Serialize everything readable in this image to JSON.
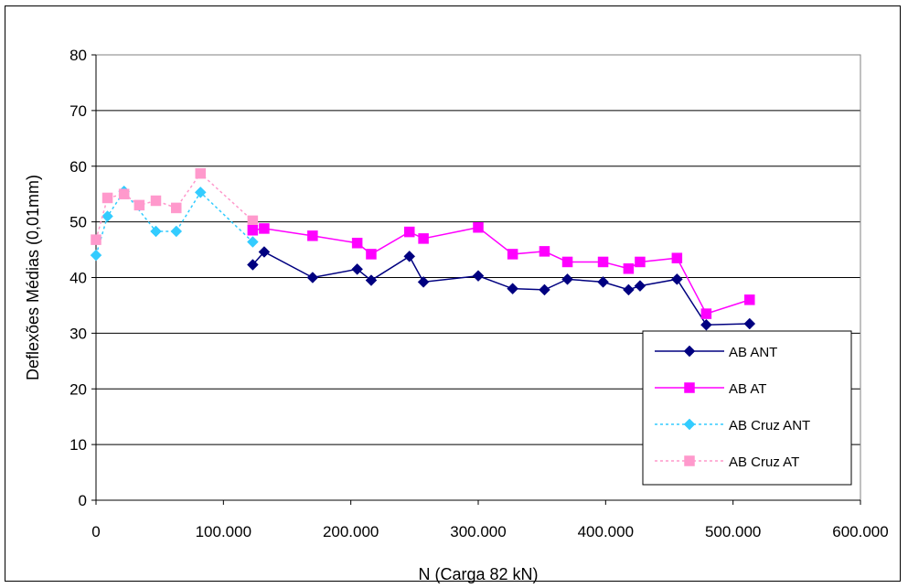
{
  "chart_data": {
    "type": "line",
    "xlabel": "N (Carga 82 kN)",
    "ylabel": "Deflexões Médias (0,01mm)",
    "xlim": [
      0,
      600000
    ],
    "ylim": [
      0,
      80
    ],
    "x_ticks": [
      0,
      100000,
      200000,
      300000,
      400000,
      500000,
      600000
    ],
    "x_tick_labels": [
      "0",
      "100.000",
      "200.000",
      "300.000",
      "400.000",
      "500.000",
      "600.000"
    ],
    "y_ticks": [
      0,
      10,
      20,
      30,
      40,
      50,
      60,
      70,
      80
    ],
    "y_tick_labels": [
      "0",
      "10",
      "20",
      "30",
      "40",
      "50",
      "60",
      "70",
      "80"
    ],
    "grid": "horizontal",
    "legend_position": "bottom-right",
    "series": [
      {
        "name": "AB ANT",
        "color": "#000080",
        "line": "solid",
        "marker": "diamond",
        "x": [
          123000,
          132000,
          170000,
          205000,
          216000,
          246000,
          257000,
          300000,
          327000,
          352000,
          370000,
          398000,
          418000,
          427000,
          456000,
          479000,
          513000
        ],
        "y": [
          42.3,
          44.6,
          40.0,
          41.5,
          39.5,
          43.8,
          39.2,
          40.3,
          38.0,
          37.8,
          39.7,
          39.2,
          37.8,
          38.5,
          39.7,
          31.5,
          31.7
        ]
      },
      {
        "name": "AB AT",
        "color": "#ff00ff",
        "line": "solid",
        "marker": "square",
        "x": [
          123000,
          132000,
          170000,
          205000,
          216000,
          246000,
          257000,
          300000,
          327000,
          352000,
          370000,
          398000,
          418000,
          427000,
          456000,
          479000,
          513000
        ],
        "y": [
          48.5,
          48.8,
          47.5,
          46.2,
          44.2,
          48.2,
          47.0,
          49.0,
          44.2,
          44.7,
          42.8,
          42.8,
          41.6,
          42.8,
          43.5,
          33.5,
          36.0
        ]
      },
      {
        "name": "AB Cruz ANT",
        "color": "#33ccff",
        "line": "dotted",
        "marker": "diamond",
        "x": [
          0,
          9000,
          22000,
          47000,
          63000,
          82000,
          123000
        ],
        "y": [
          44.0,
          51.0,
          55.5,
          48.3,
          48.3,
          55.3,
          46.4
        ]
      },
      {
        "name": "AB Cruz AT",
        "color": "#ff99cc",
        "line": "dotted",
        "marker": "square",
        "x": [
          0,
          9000,
          22000,
          34000,
          47000,
          63000,
          82000,
          123000
        ],
        "y": [
          46.8,
          54.3,
          55.0,
          53.0,
          53.8,
          52.5,
          58.7,
          50.2
        ]
      }
    ]
  }
}
